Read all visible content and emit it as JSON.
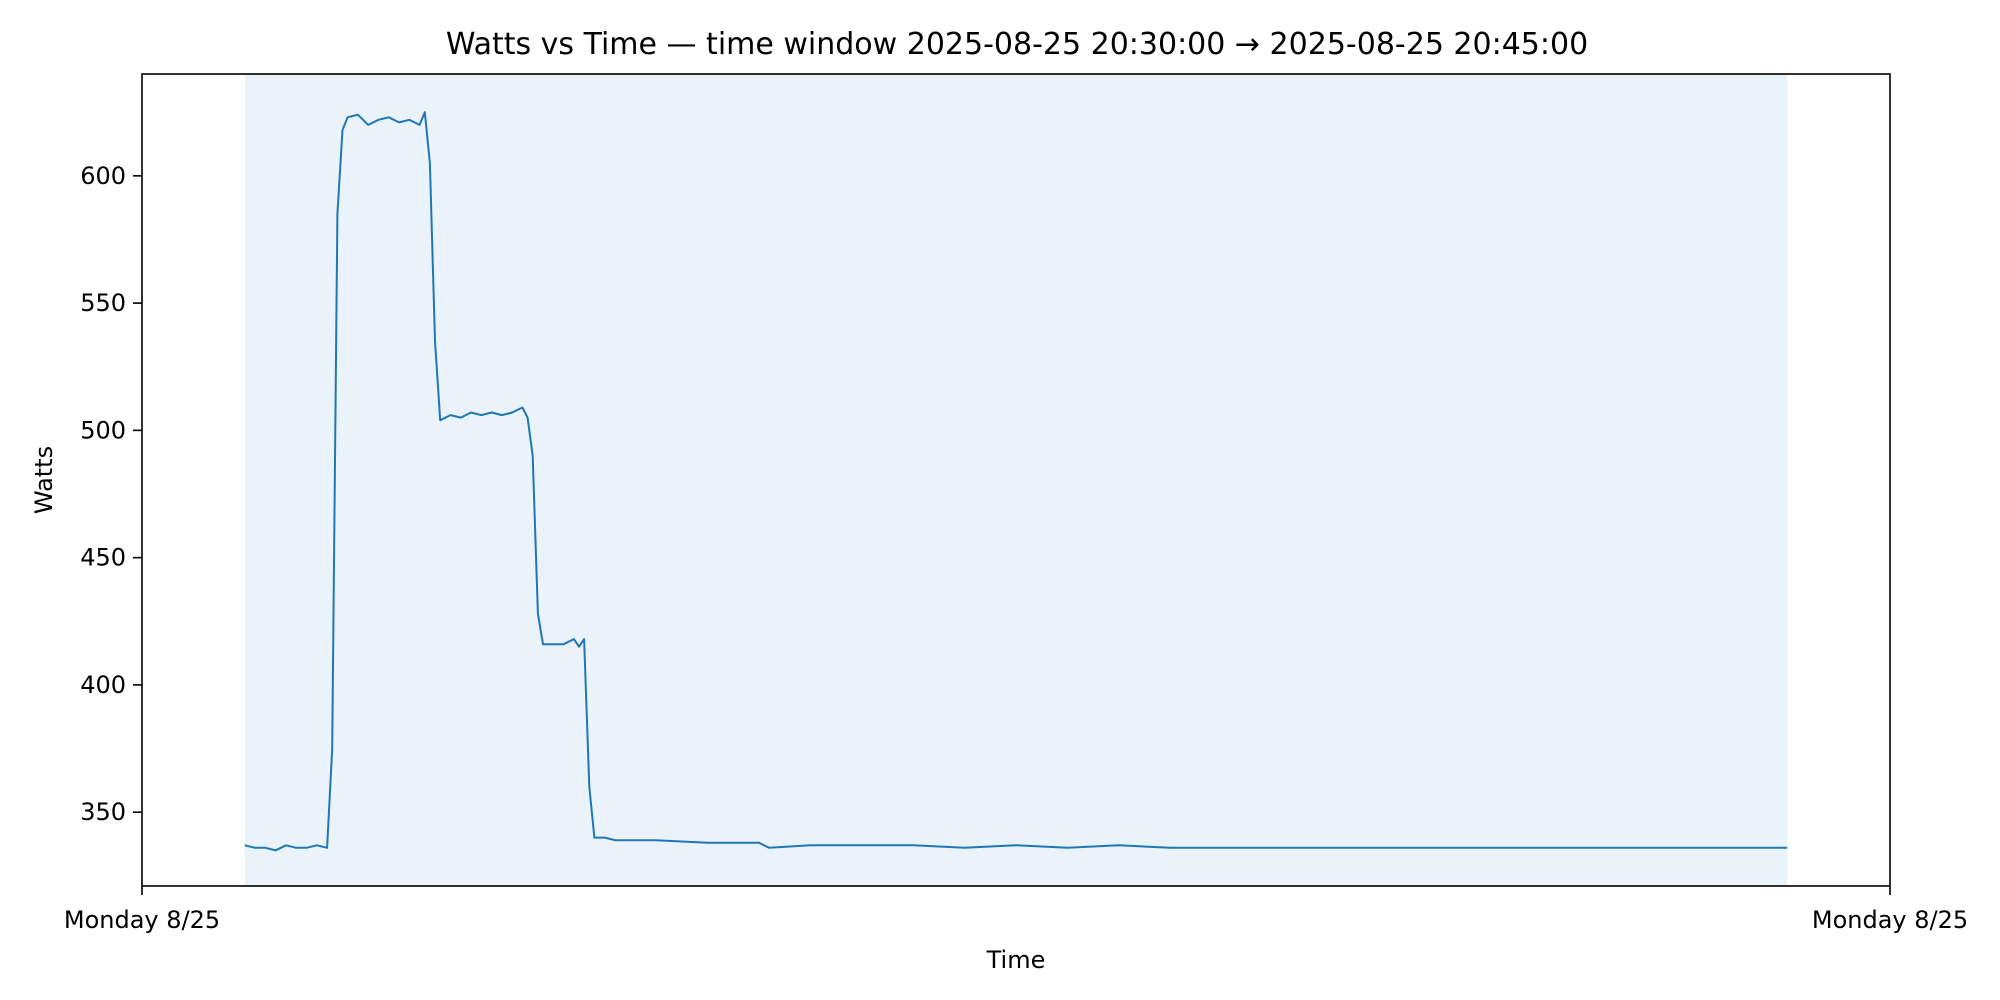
{
  "chart_data": {
    "type": "line",
    "title": "Watts vs Time — time window 2025-08-25 20:30:00 → 2025-08-25 20:45:00",
    "xlabel": "Time",
    "ylabel": "Watts",
    "xlim": [
      "2025-08-25 20:29:00",
      "2025-08-25 20:46:00"
    ],
    "ylim": [
      321,
      640
    ],
    "grid": false,
    "shaded_window": {
      "start": "2025-08-25 20:30:00",
      "end": "2025-08-25 20:45:00",
      "color": "#eaf2fa"
    },
    "x_tick_labels": [
      "Monday 8/25",
      "Monday 8/25"
    ],
    "x_ticks": [
      "2025-08-25 20:29:00",
      "2025-08-25 20:46:00"
    ],
    "y_ticks": [
      350,
      400,
      450,
      500,
      550,
      600
    ],
    "series": [
      {
        "color": "#1f77b4",
        "points": [
          [
            "2025-08-25 20:30:00",
            337
          ],
          [
            "2025-08-25 20:30:06",
            336
          ],
          [
            "2025-08-25 20:30:12",
            336
          ],
          [
            "2025-08-25 20:30:18",
            335
          ],
          [
            "2025-08-25 20:30:24",
            337
          ],
          [
            "2025-08-25 20:30:30",
            336
          ],
          [
            "2025-08-25 20:30:36",
            336
          ],
          [
            "2025-08-25 20:30:42",
            337
          ],
          [
            "2025-08-25 20:30:48",
            336
          ],
          [
            "2025-08-25 20:30:51",
            375
          ],
          [
            "2025-08-25 20:30:54",
            585
          ],
          [
            "2025-08-25 20:30:57",
            618
          ],
          [
            "2025-08-25 20:31:00",
            623
          ],
          [
            "2025-08-25 20:31:06",
            624
          ],
          [
            "2025-08-25 20:31:12",
            620
          ],
          [
            "2025-08-25 20:31:18",
            622
          ],
          [
            "2025-08-25 20:31:24",
            623
          ],
          [
            "2025-08-25 20:31:30",
            621
          ],
          [
            "2025-08-25 20:31:36",
            622
          ],
          [
            "2025-08-25 20:31:42",
            620
          ],
          [
            "2025-08-25 20:31:45",
            625
          ],
          [
            "2025-08-25 20:31:48",
            605
          ],
          [
            "2025-08-25 20:31:51",
            535
          ],
          [
            "2025-08-25 20:31:54",
            504
          ],
          [
            "2025-08-25 20:32:00",
            506
          ],
          [
            "2025-08-25 20:32:06",
            505
          ],
          [
            "2025-08-25 20:32:12",
            507
          ],
          [
            "2025-08-25 20:32:18",
            506
          ],
          [
            "2025-08-25 20:32:24",
            507
          ],
          [
            "2025-08-25 20:32:30",
            506
          ],
          [
            "2025-08-25 20:32:36",
            507
          ],
          [
            "2025-08-25 20:32:42",
            509
          ],
          [
            "2025-08-25 20:32:45",
            505
          ],
          [
            "2025-08-25 20:32:48",
            490
          ],
          [
            "2025-08-25 20:32:51",
            428
          ],
          [
            "2025-08-25 20:32:54",
            416
          ],
          [
            "2025-08-25 20:33:00",
            416
          ],
          [
            "2025-08-25 20:33:06",
            416
          ],
          [
            "2025-08-25 20:33:12",
            418
          ],
          [
            "2025-08-25 20:33:15",
            415
          ],
          [
            "2025-08-25 20:33:18",
            418
          ],
          [
            "2025-08-25 20:33:21",
            360
          ],
          [
            "2025-08-25 20:33:24",
            340
          ],
          [
            "2025-08-25 20:33:30",
            340
          ],
          [
            "2025-08-25 20:33:36",
            339
          ],
          [
            "2025-08-25 20:34:00",
            339
          ],
          [
            "2025-08-25 20:34:30",
            338
          ],
          [
            "2025-08-25 20:35:00",
            338
          ],
          [
            "2025-08-25 20:35:06",
            336
          ],
          [
            "2025-08-25 20:35:30",
            337
          ],
          [
            "2025-08-25 20:36:00",
            337
          ],
          [
            "2025-08-25 20:36:30",
            337
          ],
          [
            "2025-08-25 20:37:00",
            336
          ],
          [
            "2025-08-25 20:37:30",
            337
          ],
          [
            "2025-08-25 20:38:00",
            336
          ],
          [
            "2025-08-25 20:38:30",
            337
          ],
          [
            "2025-08-25 20:39:00",
            336
          ],
          [
            "2025-08-25 20:39:30",
            336
          ],
          [
            "2025-08-25 20:40:00",
            336
          ],
          [
            "2025-08-25 20:40:30",
            336
          ],
          [
            "2025-08-25 20:41:00",
            336
          ],
          [
            "2025-08-25 20:41:30",
            336
          ],
          [
            "2025-08-25 20:42:00",
            336
          ],
          [
            "2025-08-25 20:42:30",
            336
          ],
          [
            "2025-08-25 20:43:00",
            336
          ],
          [
            "2025-08-25 20:43:30",
            336
          ],
          [
            "2025-08-25 20:44:00",
            336
          ],
          [
            "2025-08-25 20:44:30",
            336
          ],
          [
            "2025-08-25 20:45:00",
            336
          ]
        ]
      }
    ]
  }
}
